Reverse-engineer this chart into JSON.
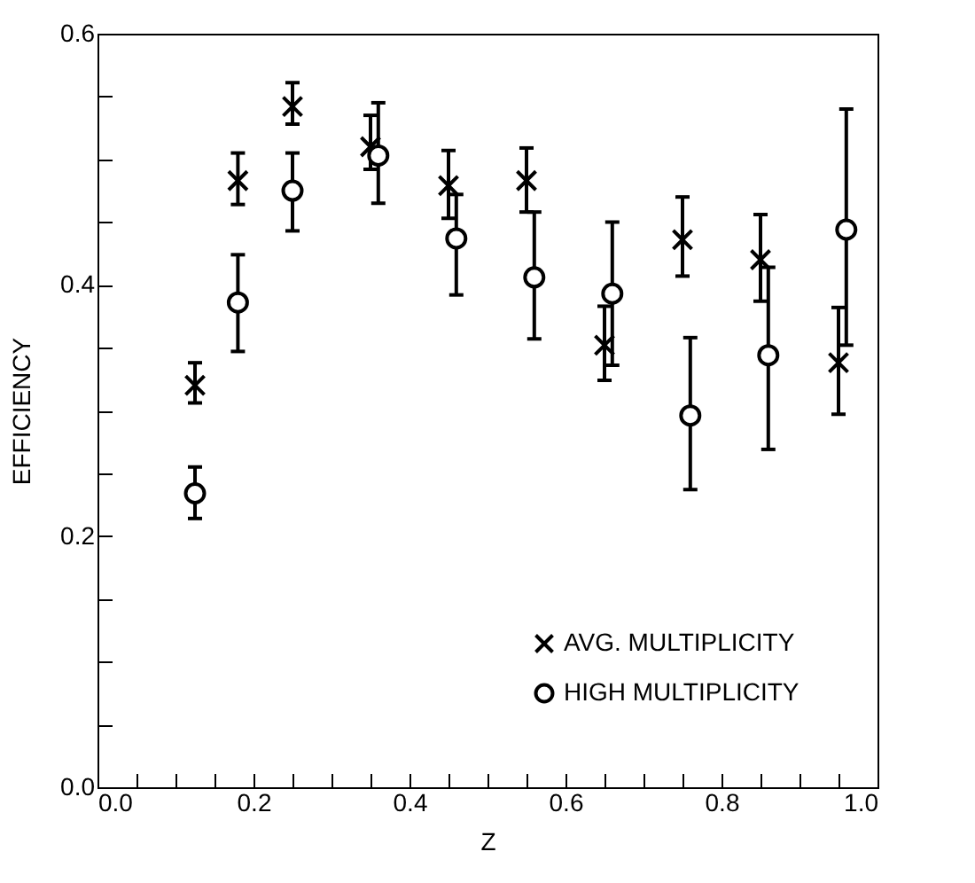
{
  "chart_data": {
    "type": "scatter",
    "xlabel": "Z",
    "ylabel": "EFFICIENCY",
    "xlim": [
      0,
      1
    ],
    "ylim": [
      0,
      0.6
    ],
    "xticks": [
      {
        "value": 0,
        "label": "0.0"
      },
      {
        "value": 0.05,
        "label": null
      },
      {
        "value": 0.1,
        "label": null
      },
      {
        "value": 0.15,
        "label": null
      },
      {
        "value": 0.2,
        "label": "0.2"
      },
      {
        "value": 0.25,
        "label": null
      },
      {
        "value": 0.3,
        "label": null
      },
      {
        "value": 0.35,
        "label": null
      },
      {
        "value": 0.4,
        "label": "0.4"
      },
      {
        "value": 0.45,
        "label": null
      },
      {
        "value": 0.5,
        "label": null
      },
      {
        "value": 0.55,
        "label": null
      },
      {
        "value": 0.6,
        "label": "0.6"
      },
      {
        "value": 0.65,
        "label": null
      },
      {
        "value": 0.7,
        "label": null
      },
      {
        "value": 0.75,
        "label": null
      },
      {
        "value": 0.8,
        "label": "0.8"
      },
      {
        "value": 0.85,
        "label": null
      },
      {
        "value": 0.9,
        "label": null
      },
      {
        "value": 0.95,
        "label": null
      },
      {
        "value": 1,
        "label": "1.0"
      }
    ],
    "yticks": [
      {
        "value": 0,
        "label": "0.0"
      },
      {
        "value": 0.05,
        "label": null
      },
      {
        "value": 0.1,
        "label": null
      },
      {
        "value": 0.15,
        "label": null
      },
      {
        "value": 0.2,
        "label": "0.2"
      },
      {
        "value": 0.25,
        "label": null
      },
      {
        "value": 0.3,
        "label": null
      },
      {
        "value": 0.35,
        "label": null
      },
      {
        "value": 0.4,
        "label": "0.4"
      },
      {
        "value": 0.45,
        "label": null
      },
      {
        "value": 0.5,
        "label": null
      },
      {
        "value": 0.55,
        "label": null
      },
      {
        "value": 0.6,
        "label": "0.6"
      }
    ],
    "legend": "bottom right",
    "grid": false,
    "series": [
      {
        "name": "AVG. MULTIPLICITY",
        "color": "#000000",
        "marker": "cross",
        "x": [
          0.125,
          0.18,
          0.25,
          0.35,
          0.45,
          0.55,
          0.65,
          0.75,
          0.85,
          0.95
        ],
        "values": [
          0.32,
          0.483,
          0.542,
          0.51,
          0.479,
          0.483,
          0.352,
          0.436,
          0.42,
          0.338
        ],
        "errors": [
          [
            0.306,
            0.338
          ],
          [
            0.464,
            0.505
          ],
          [
            0.528,
            0.561
          ],
          [
            0.492,
            0.535
          ],
          [
            0.453,
            0.507
          ],
          [
            0.458,
            0.509
          ],
          [
            0.324,
            0.383
          ],
          [
            0.407,
            0.47
          ],
          [
            0.387,
            0.456
          ],
          [
            0.297,
            0.382
          ]
        ]
      },
      {
        "name": "HIGH MULTIPLICITY",
        "color": "#000000",
        "marker": "circle",
        "x": [
          0.125,
          0.18,
          0.25,
          0.36,
          0.46,
          0.56,
          0.66,
          0.76,
          0.86,
          0.96
        ],
        "values": [
          0.234,
          0.386,
          0.475,
          0.503,
          0.437,
          0.406,
          0.393,
          0.296,
          0.344,
          0.444
        ],
        "errors": [
          [
            0.214,
            0.255
          ],
          [
            0.347,
            0.424
          ],
          [
            0.443,
            0.505
          ],
          [
            0.465,
            0.545
          ],
          [
            0.392,
            0.472
          ],
          [
            0.357,
            0.458
          ],
          [
            0.336,
            0.45
          ],
          [
            0.237,
            0.358
          ],
          [
            0.269,
            0.414
          ],
          [
            0.352,
            0.54
          ]
        ]
      }
    ]
  }
}
